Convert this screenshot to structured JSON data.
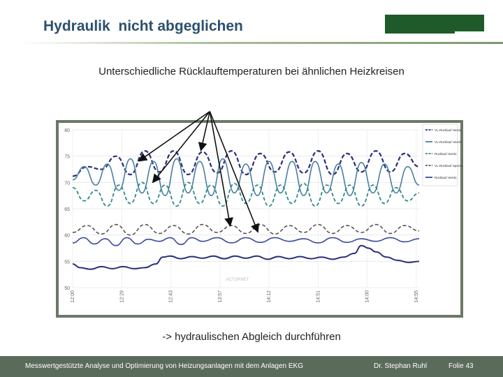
{
  "slide": {
    "title": "Hydraulik  nicht abgeglichen",
    "subtitle": "Unterschiedliche Rücklauftemperaturen bei ähnlichen Heizkreisen",
    "conclusion": "-> hydraulischen Abgleich durchführen"
  },
  "footer": {
    "left": "Messwertgestützte Analyse und Optimierung von Heizungsanlagen  mit dem Anlagen EKG",
    "author": "Dr. Stephan Ruhl",
    "slide_number": "Folie 43"
  },
  "colors": {
    "title": "#2c4f6e",
    "logo": "#1f5a2b",
    "footer_bg": "#5b6b5b",
    "chart_frame": "#6b7866"
  },
  "chart_data": {
    "type": "line",
    "y_ticks": [
      "80",
      "75",
      "70",
      "65",
      "60",
      "55",
      "50"
    ],
    "ylim": [
      50,
      80
    ],
    "xlim": [
      0,
      480
    ],
    "x_ticks": [
      {
        "x": 0,
        "label": "12:00"
      },
      {
        "x": 68,
        "label": "12:29"
      },
      {
        "x": 136,
        "label": "12:43"
      },
      {
        "x": 204,
        "label": "13:57"
      },
      {
        "x": 272,
        "label": "14:12"
      },
      {
        "x": 340,
        "label": "14:51"
      },
      {
        "x": 408,
        "label": "14:00"
      },
      {
        "x": 476,
        "label": "14:55"
      }
    ],
    "watermark": "ACTORNET",
    "legend": [
      "VL-Rücklauf Heizkr.",
      "VL-Rücklauf Heizkr.",
      "Rücklauf Heizkr.",
      "VL-Rücklauf Speich.",
      "Rücklauf Heizkr."
    ],
    "series": [
      {
        "color": "#2b2f7a",
        "dash": "6,3",
        "width": 2.2,
        "points": [
          [
            0,
            71.2
          ],
          [
            20,
            73.0
          ],
          [
            40,
            72.5
          ],
          [
            60,
            75.0
          ],
          [
            80,
            71.5
          ],
          [
            100,
            76.0
          ],
          [
            120,
            72.0
          ],
          [
            140,
            76.0
          ],
          [
            160,
            71.5
          ],
          [
            180,
            75.8
          ],
          [
            200,
            71.8
          ],
          [
            220,
            76.0
          ],
          [
            240,
            71.5
          ],
          [
            260,
            75.5
          ],
          [
            280,
            72.0
          ],
          [
            300,
            75.8
          ],
          [
            320,
            71.8
          ],
          [
            340,
            76.0
          ],
          [
            360,
            71.5
          ],
          [
            380,
            75.5
          ],
          [
            400,
            72.0
          ],
          [
            420,
            76.0
          ],
          [
            440,
            72.0
          ],
          [
            460,
            75.5
          ],
          [
            480,
            73.0
          ]
        ]
      },
      {
        "color": "#4a7fa3",
        "dash": "",
        "width": 1.6,
        "points": [
          [
            0,
            70.5
          ],
          [
            16,
            73.0
          ],
          [
            32,
            69.5
          ],
          [
            48,
            73.5
          ],
          [
            64,
            68.5
          ],
          [
            80,
            74.5
          ],
          [
            96,
            68.0
          ],
          [
            112,
            74.0
          ],
          [
            128,
            67.5
          ],
          [
            144,
            74.5
          ],
          [
            160,
            68.0
          ],
          [
            176,
            74.0
          ],
          [
            192,
            67.5
          ],
          [
            208,
            74.5
          ],
          [
            224,
            68.0
          ],
          [
            240,
            73.5
          ],
          [
            256,
            67.5
          ],
          [
            272,
            74.0
          ],
          [
            288,
            68.0
          ],
          [
            304,
            74.0
          ],
          [
            320,
            67.5
          ],
          [
            336,
            74.0
          ],
          [
            352,
            68.0
          ],
          [
            368,
            73.5
          ],
          [
            384,
            67.5
          ],
          [
            400,
            73.8
          ],
          [
            416,
            68.0
          ],
          [
            432,
            73.5
          ],
          [
            448,
            68.0
          ],
          [
            464,
            73.0
          ],
          [
            480,
            69.5
          ]
        ]
      },
      {
        "color": "#2e8a8a",
        "dash": "5,3",
        "width": 1.8,
        "points": [
          [
            0,
            69.0
          ],
          [
            16,
            66.5
          ],
          [
            32,
            68.5
          ],
          [
            48,
            65.5
          ],
          [
            64,
            69.5
          ],
          [
            80,
            66.0
          ],
          [
            96,
            70.0
          ],
          [
            112,
            66.0
          ],
          [
            128,
            69.5
          ],
          [
            144,
            65.5
          ],
          [
            160,
            70.0
          ],
          [
            176,
            66.0
          ],
          [
            192,
            69.5
          ],
          [
            208,
            65.5
          ],
          [
            224,
            69.8
          ],
          [
            240,
            66.0
          ],
          [
            256,
            69.5
          ],
          [
            272,
            65.5
          ],
          [
            288,
            69.5
          ],
          [
            304,
            66.0
          ],
          [
            320,
            69.8
          ],
          [
            336,
            65.5
          ],
          [
            352,
            69.5
          ],
          [
            368,
            66.0
          ],
          [
            384,
            69.5
          ],
          [
            400,
            65.5
          ],
          [
            416,
            69.5
          ],
          [
            432,
            66.0
          ],
          [
            448,
            69.0
          ],
          [
            464,
            66.5
          ],
          [
            480,
            68.0
          ]
        ]
      },
      {
        "color": "#555555",
        "dash": "5,3",
        "width": 1.6,
        "points": [
          [
            0,
            60.5
          ],
          [
            20,
            61.8
          ],
          [
            40,
            60.2
          ],
          [
            60,
            62.0
          ],
          [
            80,
            60.0
          ],
          [
            100,
            62.0
          ],
          [
            120,
            60.3
          ],
          [
            140,
            61.8
          ],
          [
            160,
            60.2
          ],
          [
            180,
            62.0
          ],
          [
            200,
            60.5
          ],
          [
            220,
            61.8
          ],
          [
            240,
            60.3
          ],
          [
            260,
            62.0
          ],
          [
            280,
            60.2
          ],
          [
            300,
            61.8
          ],
          [
            320,
            60.5
          ],
          [
            340,
            62.0
          ],
          [
            360,
            60.3
          ],
          [
            380,
            61.8
          ],
          [
            400,
            60.5
          ],
          [
            420,
            62.0
          ],
          [
            440,
            60.3
          ],
          [
            460,
            61.8
          ],
          [
            480,
            60.8
          ]
        ]
      },
      {
        "color": "#3a4a9a",
        "dash": "",
        "width": 1.6,
        "points": [
          [
            0,
            58.5
          ],
          [
            15,
            59.5
          ],
          [
            30,
            58.3
          ],
          [
            45,
            59.3
          ],
          [
            60,
            58.0
          ],
          [
            75,
            59.5
          ],
          [
            90,
            58.3
          ],
          [
            105,
            59.2
          ],
          [
            120,
            58.8
          ],
          [
            135,
            59.5
          ],
          [
            150,
            58.2
          ],
          [
            165,
            59.5
          ],
          [
            180,
            58.8
          ],
          [
            200,
            59.5
          ],
          [
            220,
            58.5
          ],
          [
            240,
            59.5
          ],
          [
            260,
            58.6
          ],
          [
            280,
            59.5
          ],
          [
            300,
            58.8
          ],
          [
            320,
            59.3
          ],
          [
            340,
            58.5
          ],
          [
            360,
            59.5
          ],
          [
            380,
            58.6
          ],
          [
            400,
            59.3
          ],
          [
            420,
            58.8
          ],
          [
            440,
            59.5
          ],
          [
            460,
            58.7
          ],
          [
            480,
            59.3
          ]
        ]
      },
      {
        "color": "#2b2f7a",
        "dash": "",
        "width": 2.0,
        "points": [
          [
            0,
            54.5
          ],
          [
            10,
            53.8
          ],
          [
            25,
            53.5
          ],
          [
            40,
            54.0
          ],
          [
            55,
            53.6
          ],
          [
            70,
            54.0
          ],
          [
            85,
            53.6
          ],
          [
            100,
            53.8
          ],
          [
            115,
            54.5
          ],
          [
            125,
            55.8
          ],
          [
            135,
            56.0
          ],
          [
            150,
            55.5
          ],
          [
            165,
            55.9
          ],
          [
            180,
            55.6
          ],
          [
            195,
            56.0
          ],
          [
            210,
            55.5
          ],
          [
            225,
            56.0
          ],
          [
            240,
            55.6
          ],
          [
            255,
            56.0
          ],
          [
            270,
            55.4
          ],
          [
            285,
            55.9
          ],
          [
            300,
            55.5
          ],
          [
            315,
            55.9
          ],
          [
            330,
            55.5
          ],
          [
            345,
            55.8
          ],
          [
            360,
            55.4
          ],
          [
            375,
            55.8
          ],
          [
            390,
            56.5
          ],
          [
            400,
            58.0
          ],
          [
            410,
            57.5
          ],
          [
            420,
            56.8
          ],
          [
            435,
            55.8
          ],
          [
            450,
            55.2
          ],
          [
            465,
            54.8
          ],
          [
            480,
            55.0
          ]
        ]
      }
    ]
  },
  "annotation": {
    "origin_data": [
      190,
      83.5
    ],
    "targets_data": [
      [
        93,
        74.2
      ],
      [
        112,
        70.2
      ],
      [
        178,
        76.3
      ],
      [
        218,
        62.0
      ],
      [
        256,
        60.8
      ]
    ]
  }
}
